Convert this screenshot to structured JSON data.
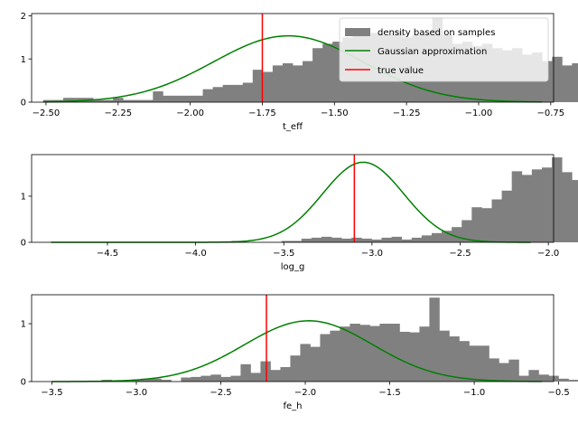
{
  "chart_data": [
    {
      "type": "histogram",
      "xlabel": "t_eff",
      "xlim": [
        -2.55,
        -0.74
      ],
      "ylim": [
        0,
        2.05
      ],
      "xticks": [
        -2.5,
        -2.25,
        -2.0,
        -1.75,
        -1.5,
        -1.25,
        -1.0,
        -0.75
      ],
      "xtick_labels": [
        "−2.50",
        "−2.25",
        "−2.00",
        "−1.75",
        "−1.50",
        "−1.25",
        "−1.00",
        "−0.75"
      ],
      "yticks": [
        0,
        1,
        2
      ],
      "ytick_labels": [
        "0",
        "1",
        "2"
      ],
      "bins_start": -2.51,
      "bin_width": 0.0346,
      "density": [
        0.05,
        0.05,
        0.1,
        0.1,
        0.1,
        0.05,
        0.05,
        0.1,
        0.05,
        0.05,
        0.05,
        0.25,
        0.15,
        0.15,
        0.15,
        0.15,
        0.3,
        0.35,
        0.4,
        0.4,
        0.45,
        0.75,
        0.7,
        0.85,
        0.9,
        0.85,
        0.95,
        1.25,
        1.35,
        1.4,
        1.5,
        1.55,
        1.6,
        1.6,
        1.55,
        1.65,
        1.5,
        1.55,
        1.6,
        1.95,
        1.55,
        1.35,
        1.4,
        1.3,
        1.35,
        1.25,
        1.2,
        1.25,
        1.1,
        1.15,
        0.95,
        1.05,
        0.85,
        0.9,
        0.75,
        0.6,
        0.55,
        0.45,
        0.4,
        0.4,
        0.25,
        0.2,
        0.15,
        0.05,
        0.05,
        0.05,
        0.0,
        0.0,
        0.05,
        0.1,
        0.0,
        0.05,
        0.0,
        0.0,
        0.0,
        0.0,
        0.0,
        0.0
      ],
      "gaussian": {
        "mean": -1.66,
        "sigma": 0.26,
        "xrange": [
          -2.51,
          -0.78
        ]
      },
      "true_value": -1.75,
      "legend": {
        "placement": "upper right",
        "entries": [
          {
            "label": "density based on samples",
            "kind": "patch",
            "color": "#808080"
          },
          {
            "label": "Gaussian approximation",
            "kind": "line",
            "color": "#008000"
          },
          {
            "label": "true value",
            "kind": "line",
            "color": "#ff0000"
          }
        ]
      }
    },
    {
      "type": "histogram",
      "xlabel": "log_g",
      "xlim": [
        -4.93,
        -1.97
      ],
      "ylim": [
        0,
        1.9
      ],
      "xticks": [
        -4.5,
        -4.0,
        -3.5,
        -3.0,
        -2.5,
        -2.0
      ],
      "xtick_labels": [
        "−4.5",
        "−4.0",
        "−3.5",
        "−3.0",
        "−2.5",
        "−2.0"
      ],
      "yticks": [
        0,
        1
      ],
      "ytick_labels": [
        "0",
        "1"
      ],
      "bins_start": -4.82,
      "bin_width": 0.0568,
      "density": [
        0,
        0,
        0,
        0,
        0,
        0,
        0,
        0,
        0,
        0,
        0,
        0,
        0,
        0,
        0,
        0,
        0,
        0,
        0.03,
        0,
        0,
        0,
        0,
        0.03,
        0.03,
        0.08,
        0.1,
        0.12,
        0.1,
        0.08,
        0.1,
        0.08,
        0.06,
        0.1,
        0.12,
        0.06,
        0.1,
        0.15,
        0.2,
        0.25,
        0.33,
        0.48,
        0.76,
        0.74,
        0.93,
        1.12,
        1.54,
        1.46,
        1.58,
        1.62,
        1.84,
        1.52,
        1.35,
        1.4,
        1.32,
        1.05,
        0.82,
        0.64,
        0.35,
        0.35,
        0.2,
        0.18,
        0.12,
        0.06,
        0.04,
        0.06,
        0.0,
        0.02,
        0.0
      ],
      "gaussian": {
        "mean": -3.05,
        "sigma": 0.23,
        "xrange": [
          -4.82,
          -2.1
        ]
      },
      "true_value": -3.1
    },
    {
      "type": "histogram",
      "xlabel": "fe_h",
      "xlim": [
        -3.62,
        -0.53
      ],
      "ylim": [
        0,
        1.5
      ],
      "xticks": [
        -3.5,
        -3.0,
        -2.5,
        -2.0,
        -1.5,
        -1.0,
        -0.5
      ],
      "xtick_labels": [
        "−3.5",
        "−3.0",
        "−2.5",
        "−2.0",
        "−1.5",
        "−1.0",
        "−0.5"
      ],
      "yticks": [
        0,
        1
      ],
      "ytick_labels": [
        "0",
        "1"
      ],
      "bins_start": -3.5,
      "bin_width": 0.0588,
      "density": [
        0,
        0,
        0,
        0,
        0,
        0.03,
        0.02,
        0.0,
        0.03,
        0.05,
        0.05,
        0.03,
        0.0,
        0.07,
        0.08,
        0.1,
        0.12,
        0.08,
        0.1,
        0.3,
        0.15,
        0.35,
        0.2,
        0.25,
        0.45,
        0.65,
        0.6,
        0.82,
        0.88,
        0.95,
        1.0,
        0.98,
        0.96,
        1.0,
        1.0,
        0.86,
        0.85,
        0.95,
        1.45,
        0.88,
        0.78,
        0.7,
        0.62,
        0.62,
        0.4,
        0.32,
        0.38,
        0.1,
        0.2,
        0.12,
        0.1,
        0.05,
        0.03,
        0.05,
        0.02,
        0.0,
        0.0,
        0.0,
        0.0,
        0.0,
        0.0,
        0.0,
        0.0,
        0.0,
        0.0,
        0.0,
        0.03
      ],
      "gaussian": {
        "mean": -1.98,
        "sigma": 0.38,
        "xrange": [
          -3.5,
          -0.6
        ]
      },
      "true_value": -2.23
    }
  ]
}
